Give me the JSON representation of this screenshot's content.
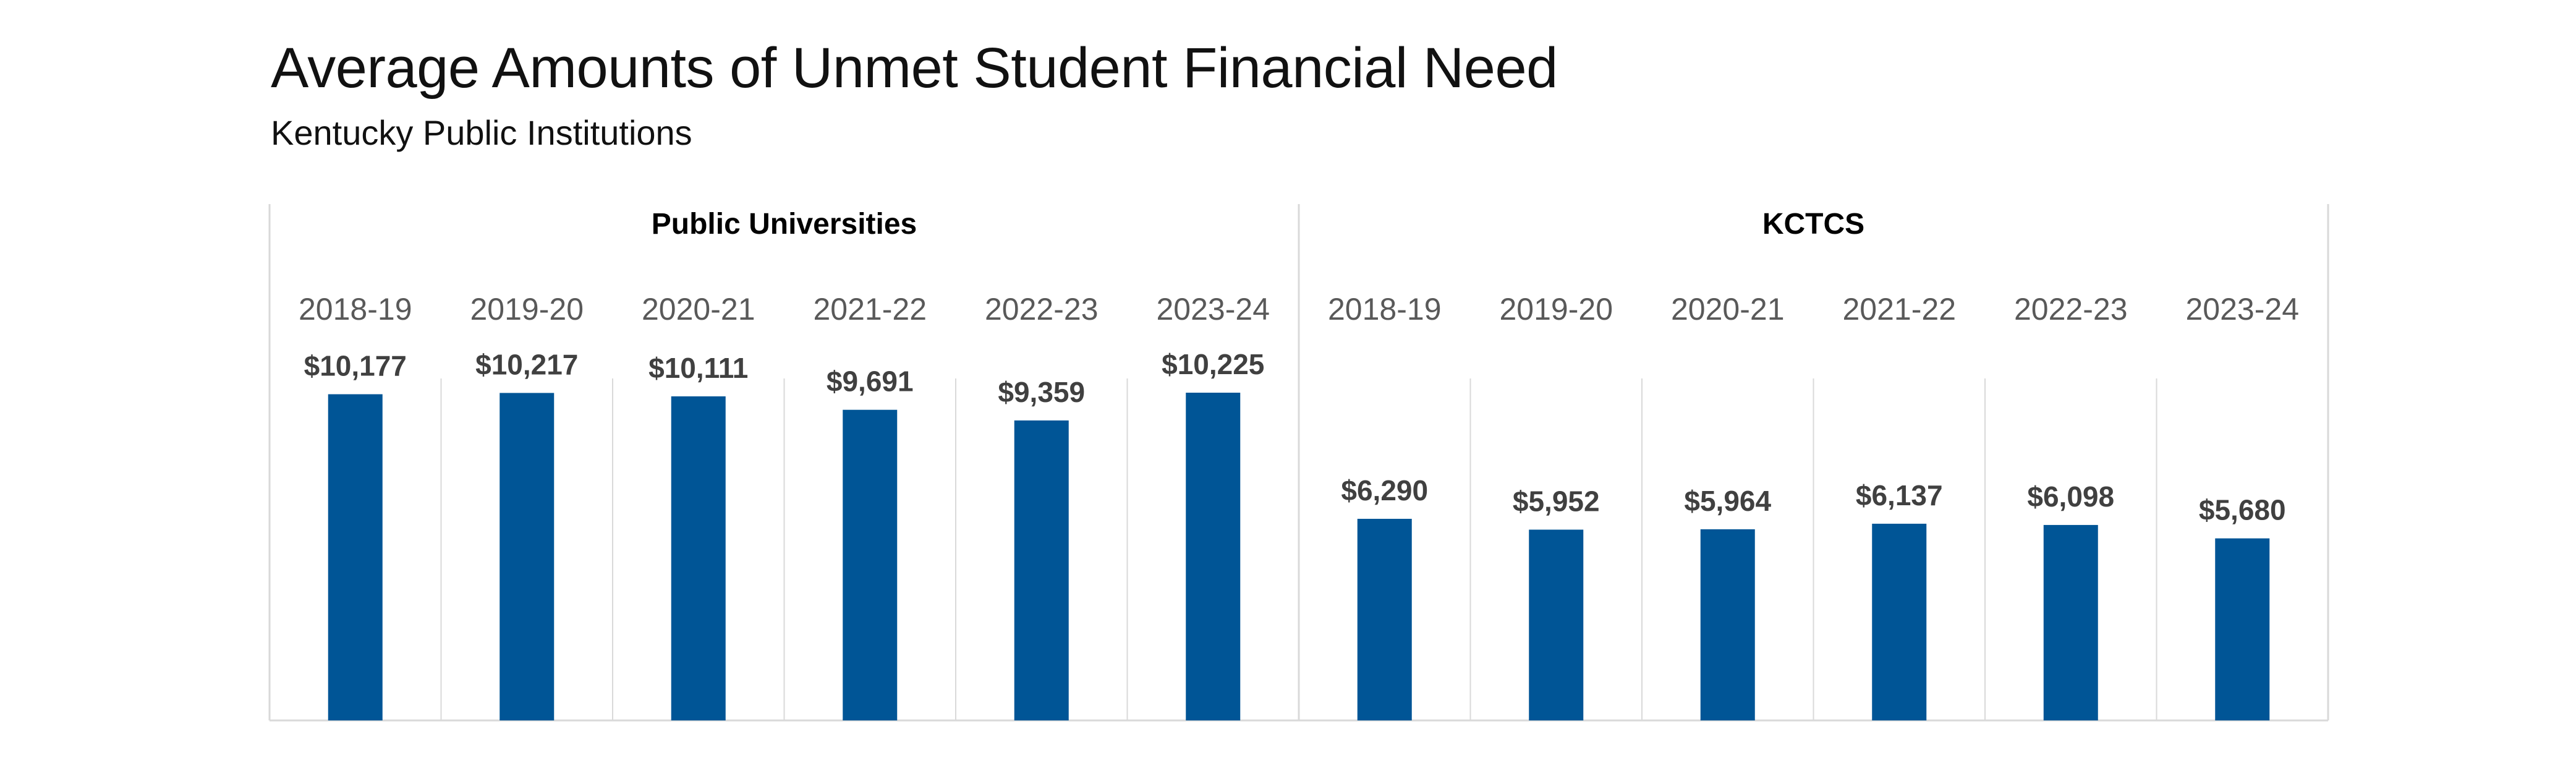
{
  "title": "Average Amounts of Unmet Student Financial Need",
  "subtitle": "Kentucky Public Institutions",
  "colors": {
    "bar": "#005596",
    "value_label": "#404040",
    "category_label": "#595959",
    "panel_title": "#000000",
    "gridline": "#d9d9d9"
  },
  "chart_data": {
    "type": "bar",
    "ylim": [
      0,
      12000
    ],
    "grid": true,
    "legend": "none",
    "panels": [
      {
        "name": "Public Universities",
        "categories": [
          "2018-19",
          "2019-20",
          "2020-21",
          "2021-22",
          "2022-23",
          "2023-24"
        ],
        "values": [
          10177,
          10217,
          10111,
          9691,
          9359,
          10225
        ],
        "labels": [
          "$10,177",
          "$10,217",
          "$10,111",
          "$9,691",
          "$9,359",
          "$10,225"
        ]
      },
      {
        "name": "KCTCS",
        "categories": [
          "2018-19",
          "2019-20",
          "2020-21",
          "2021-22",
          "2022-23",
          "2023-24"
        ],
        "values": [
          6290,
          5952,
          5964,
          6137,
          6098,
          5680
        ],
        "labels": [
          "$6,290",
          "$5,952",
          "$5,964",
          "$6,137",
          "$6,098",
          "$5,680"
        ]
      }
    ]
  }
}
